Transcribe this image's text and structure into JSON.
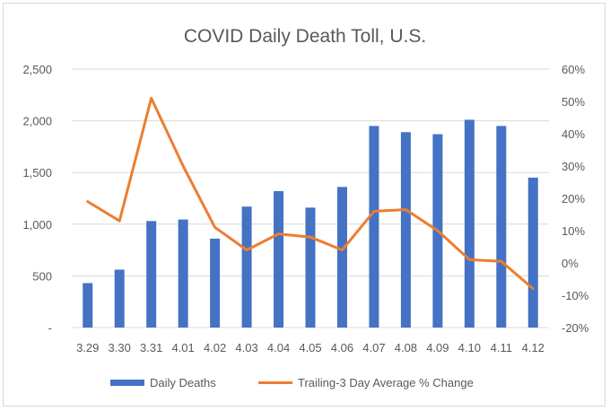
{
  "chart_data": {
    "type": "bar+line",
    "title": "COVID Daily Death Toll, U.S.",
    "categories": [
      "3.29",
      "3.30",
      "3.31",
      "4.01",
      "4.02",
      "4.03",
      "4.04",
      "4.05",
      "4.06",
      "4.07",
      "4.08",
      "4.09",
      "4.10",
      "4.11",
      "4.12"
    ],
    "series": [
      {
        "name": "Daily Deaths",
        "kind": "bar",
        "axis": "left",
        "color": "#4472C4",
        "values": [
          430,
          560,
          1030,
          1045,
          860,
          1170,
          1320,
          1160,
          1360,
          1950,
          1890,
          1870,
          2010,
          1950,
          1450
        ]
      },
      {
        "name": "Trailing-3 Day Average % Change",
        "kind": "line",
        "axis": "right",
        "color": "#ED7D31",
        "values": [
          19,
          13,
          51,
          30,
          11,
          4,
          9,
          8,
          4,
          16,
          16.5,
          10,
          1,
          0.5,
          -8
        ]
      }
    ],
    "y_left": {
      "min": 0,
      "max": 2500,
      "ticks": [
        "-",
        "500",
        "1,000",
        "1,500",
        "2,000",
        "2,500"
      ]
    },
    "y_right": {
      "min": -20,
      "max": 60,
      "ticks": [
        "-20%",
        "-10%",
        "0%",
        "10%",
        "20%",
        "30%",
        "40%",
        "50%",
        "60%"
      ]
    },
    "grid": true,
    "legend_position": "bottom"
  }
}
